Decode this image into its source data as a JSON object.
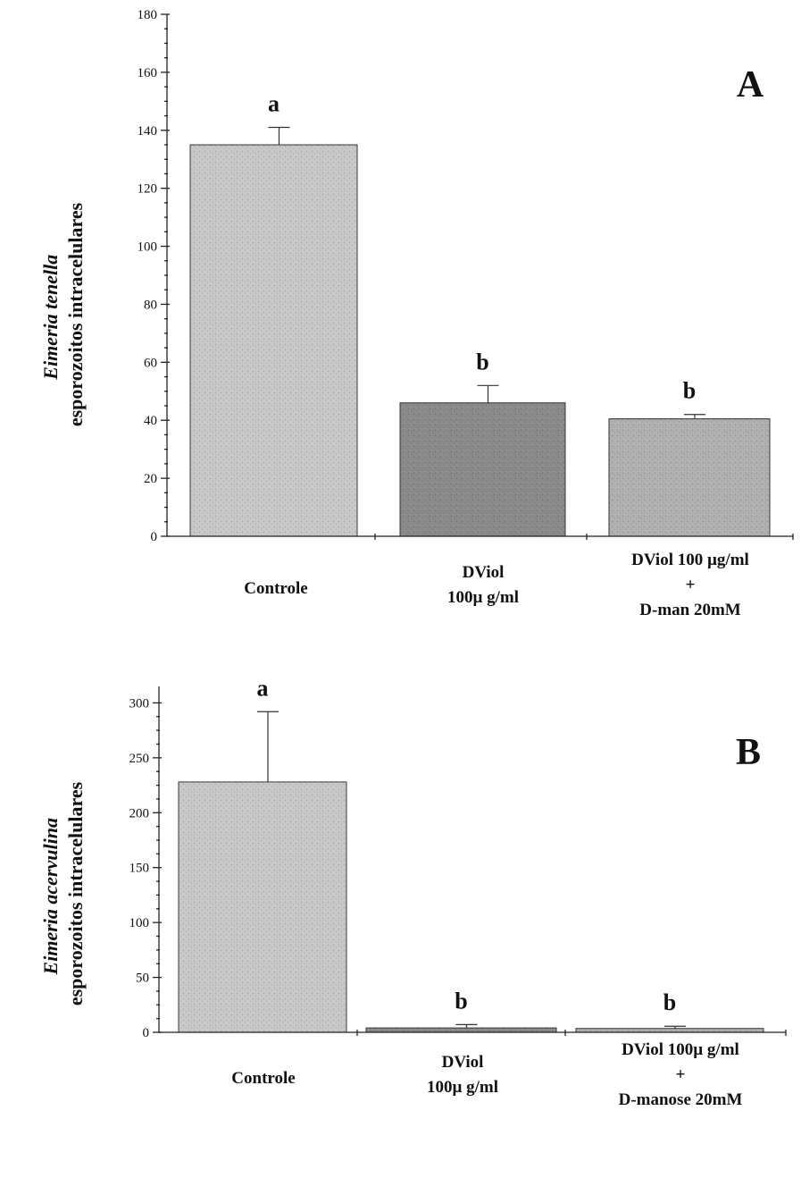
{
  "chart_data": [
    {
      "type": "bar",
      "panel": "A",
      "categories": [
        [
          "Controle"
        ],
        [
          "DViol",
          "100µ g/ml"
        ],
        [
          "DViol 100  µg/ml",
          "+",
          "D-man 20mM"
        ]
      ],
      "values": [
        135,
        46,
        40.5
      ],
      "errors": [
        6,
        6,
        1.5
      ],
      "significance": [
        "a",
        "b",
        "b"
      ],
      "colors": [
        "#c8c8c8",
        "#8a8a8a",
        "#b0b0b0"
      ],
      "ylabel_italic": "Eimeria tenella",
      "ylabel": "esporozoitos intracelulares",
      "ylim": [
        0,
        180
      ],
      "yticks": [
        0,
        20,
        40,
        60,
        80,
        100,
        120,
        140,
        160,
        180
      ],
      "grid": false
    },
    {
      "type": "bar",
      "panel": "B",
      "categories": [
        [
          "Controle"
        ],
        [
          "DViol",
          "100µ g/ml"
        ],
        [
          "DViol 100µ g/ml",
          "+",
          "D-manose 20mM"
        ]
      ],
      "values": [
        228,
        4,
        3.5
      ],
      "errors": [
        64,
        3,
        2
      ],
      "significance": [
        "a",
        "b",
        "b"
      ],
      "colors": [
        "#c8c8c8",
        "#8a8a8a",
        "#b0b0b0"
      ],
      "ylabel_italic": "Eimeria acervulina",
      "ylabel": "esporozoitos intracelulares",
      "ylim": [
        0,
        315
      ],
      "yticks": [
        0,
        50,
        100,
        150,
        200,
        250,
        300
      ],
      "grid": false
    }
  ]
}
